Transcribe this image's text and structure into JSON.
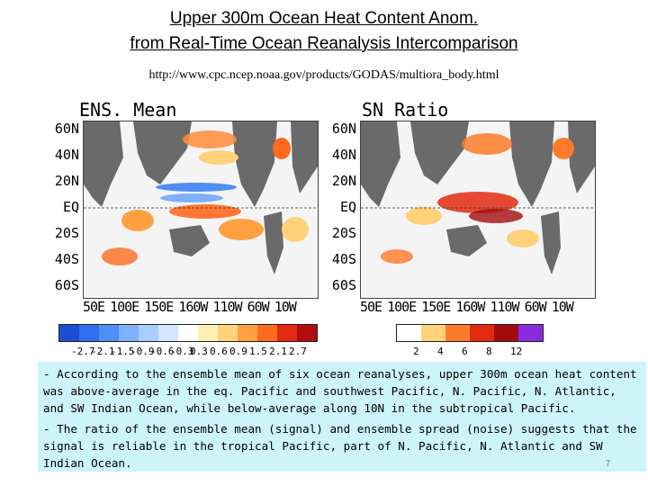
{
  "header": {
    "title_line1": "Upper 300m Ocean Heat Content Anom.",
    "title_line2": "from Real-Time Ocean Reanalysis Intercomparison",
    "url": "http://www.cpc.ncep.noaa.gov/products/GODAS/multiora_body.html"
  },
  "panels": [
    {
      "title": "ENS. Mean",
      "lat_labels": [
        "60N",
        "40N",
        "20N",
        "EQ",
        "20S",
        "40S",
        "60S"
      ],
      "lon_labels": [
        "50E",
        "100E",
        "150E",
        "160W",
        "110W",
        "60W",
        "10W"
      ]
    },
    {
      "title": "SN Ratio",
      "lat_labels": [
        "60N",
        "40N",
        "20N",
        "EQ",
        "20S",
        "40S",
        "60S"
      ],
      "lon_labels": [
        "50E",
        "100E",
        "150E",
        "160W",
        "110W",
        "60W",
        "10W"
      ]
    }
  ],
  "legend_left": {
    "labels": [
      "-2.7",
      "-2.1",
      "-1.5",
      "-0.9",
      "-0.6",
      "-0.3",
      "0.3",
      "0.6",
      "0.9",
      "1.5",
      "2.1",
      "2.7"
    ],
    "colors": [
      "#1a4fd6",
      "#2f6ff0",
      "#4f8ef7",
      "#7fb0fb",
      "#a6cdfd",
      "#d2e6ff",
      "#ffffff",
      "#fff0b0",
      "#ffd27a",
      "#ffa040",
      "#ff6a1e",
      "#e22a10",
      "#b00e0e"
    ]
  },
  "legend_right": {
    "labels": [
      "2",
      "4",
      "6",
      "8",
      "12"
    ],
    "colors": [
      "#ffffff",
      "#ffd27a",
      "#ff7a2a",
      "#e22a10",
      "#a30c0c",
      "#8a2be2"
    ]
  },
  "notes": {
    "note1": "- According to the ensemble mean of six ocean reanalyses, upper 300m ocean heat content was above-average in the eq. Pacific and southwest Pacific, N. Pacific, N. Atlantic, and SW Indian Ocean, while below-average along 10N in the subtropical Pacific.",
    "note2": "- The ratio of the ensemble mean (signal) and ensemble spread (noise) suggests that the signal is reliable in the tropical Pacific, part of N. Pacific, N. Atlantic and SW Indian Ocean."
  },
  "page_number": "7"
}
